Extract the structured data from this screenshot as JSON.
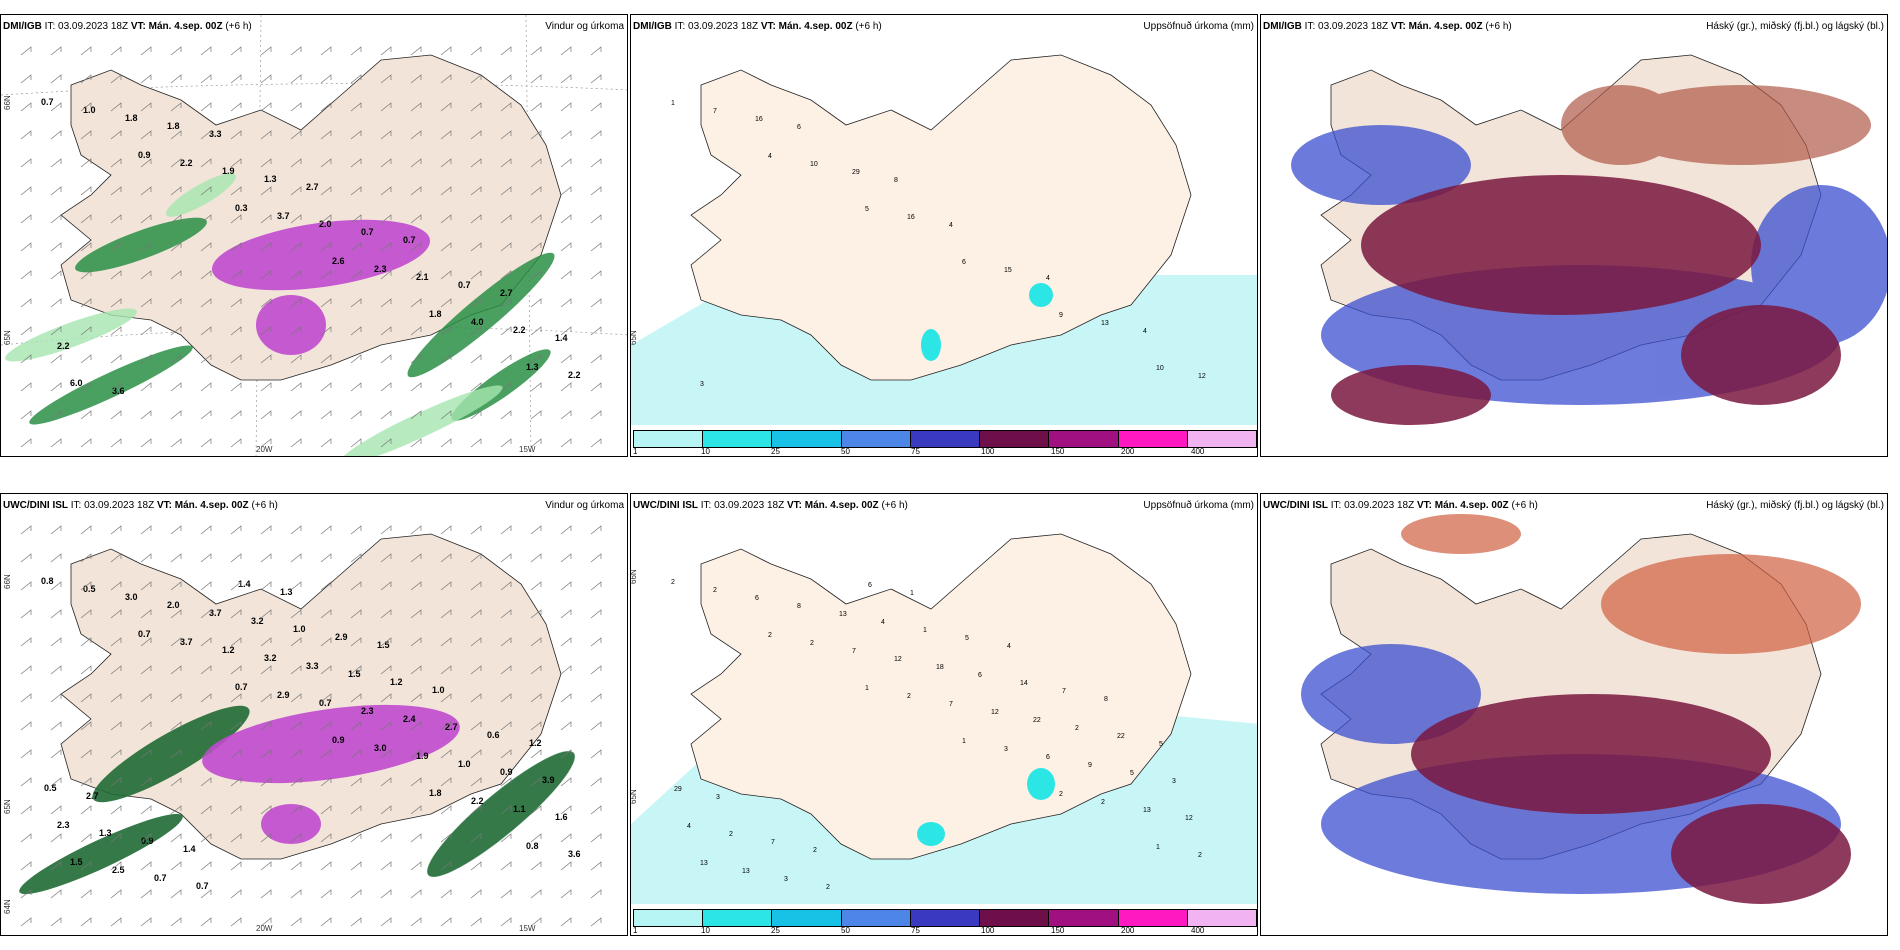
{
  "panels": [
    {
      "source": "DMI/IGB",
      "it": "IT: 03.09.2023 18Z",
      "vt": "VT: Mán. 4.sep. 00Z",
      "lead": "(+6 h)",
      "title": "Vindur og úrkoma",
      "lon_labels": [
        "20W",
        "15W"
      ],
      "lat_labels": [
        "66N",
        "65N"
      ]
    },
    {
      "source": "DMI/IGB",
      "it": "IT: 03.09.2023 18Z",
      "vt": "VT: Mán. 4.sep. 00Z",
      "lead": "(+6 h)",
      "title": "Uppsöfnuð úrkoma (mm)",
      "lat_labels": [
        "65N"
      ]
    },
    {
      "source": "DMI/IGB",
      "it": "IT: 03.09.2023 18Z",
      "vt": "VT: Mán. 4.sep. 00Z",
      "lead": "(+6 h)",
      "title": "Háský (gr.), miðský (fj.bl.) og lágský (bl.)"
    },
    {
      "source": "UWC/DINI ISL",
      "it": "IT: 03.09.2023 18Z",
      "vt": "VT: Mán. 4.sep. 00Z",
      "lead": "(+6 h)",
      "title": "Vindur og úrkoma",
      "lon_labels": [
        "20W",
        "15W"
      ],
      "lat_labels": [
        "66N",
        "65N",
        "64N"
      ]
    },
    {
      "source": "UWC/DINI ISL",
      "it": "IT: 03.09.2023 18Z",
      "vt": "VT: Mán. 4.sep. 00Z",
      "lead": "(+6 h)",
      "title": "Uppsöfnuð úrkoma (mm)",
      "lat_labels": [
        "66N",
        "65N"
      ]
    },
    {
      "source": "UWC/DINI ISL",
      "it": "IT: 03.09.2023 18Z",
      "vt": "VT: Mán. 4.sep. 00Z",
      "lead": "(+6 h)",
      "title": "Háský (gr.), miðský (fj.bl.) og lágský (bl.)"
    }
  ],
  "wind_labels_top": [
    "0.7",
    "0.9",
    "0.3",
    "2.6",
    "1.8",
    "1.3",
    "1.0",
    "2.2",
    "3.7",
    "2.3",
    "4.0",
    "2.2",
    "1.8",
    "1.9",
    "2.0",
    "2.1",
    "2.2",
    "6.0",
    "1.8",
    "1.3",
    "0.7",
    "0.7",
    "1.4",
    "3.6",
    "3.3",
    "2.7",
    "0.7",
    "2.7",
    "2.2"
  ],
  "wind_labels_bottom": [
    "0.8",
    "0.7",
    "0.7",
    "0.9",
    "1.8",
    "0.8",
    "0.5",
    "3.7",
    "2.9",
    "3.0",
    "2.2",
    "3.6",
    "3.0",
    "1.2",
    "0.7",
    "1.9",
    "1.1",
    "1.5",
    "2.0",
    "3.2",
    "2.3",
    "1.0",
    "1.6",
    "2.5",
    "3.7",
    "3.3",
    "2.4",
    "0.9",
    "2.3",
    "0.7",
    "3.2",
    "1.5",
    "2.7",
    "3.9",
    "1.3",
    "0.7",
    "1.0",
    "1.2",
    "0.6",
    "0.5",
    "0.9",
    "1.4",
    "2.9",
    "1.0",
    "1.2",
    "2.7",
    "1.4",
    "1.3",
    "1.5"
  ],
  "precip_labels_top": [
    "1",
    "4",
    "5",
    "6",
    "9",
    "10",
    "7",
    "10",
    "16",
    "15",
    "13",
    "12",
    "16",
    "29",
    "4",
    "4",
    "4",
    "3",
    "6",
    "8"
  ],
  "precip_labels_bottom": [
    "2",
    "2",
    "1",
    "1",
    "2",
    "1",
    "2",
    "2",
    "2",
    "3",
    "2",
    "2",
    "6",
    "7",
    "7",
    "6",
    "13",
    "13",
    "8",
    "12",
    "12",
    "9",
    "12",
    "13",
    "13",
    "18",
    "22",
    "5",
    "4",
    "3",
    "4",
    "6",
    "2",
    "3",
    "2",
    "2",
    "1",
    "14",
    "22",
    "29",
    "7",
    "6",
    "5",
    "7",
    "5",
    "3",
    "2",
    "1",
    "4",
    "8"
  ],
  "colorbar": {
    "labels": [
      "1",
      "10",
      "25",
      "50",
      "75",
      "100",
      "150",
      "200",
      "400"
    ],
    "colors": [
      "#b7f5f5",
      "#2ce6e6",
      "#18c2e6",
      "#4e86e8",
      "#3a3ac0",
      "#6e0f4a",
      "#a01080",
      "#ff19c0",
      "#f2b3f2"
    ]
  },
  "colors": {
    "land": "#f2e4d8",
    "sea": "#ffffff",
    "green": "#1f7a3a",
    "magenta": "#c04ad0",
    "cyan_light": "#c8f6f6",
    "dark_red": "#7a1840",
    "blue": "#3b4fd0"
  }
}
